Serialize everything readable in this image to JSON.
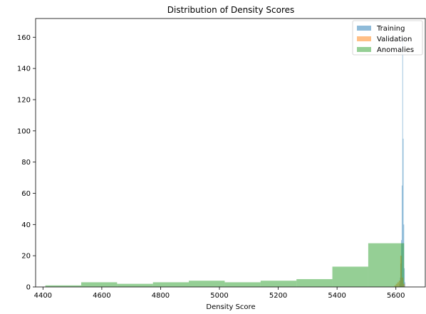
{
  "chart_data": {
    "type": "histogram",
    "title": "Distribution of Density Scores",
    "xlabel": "Density Score",
    "ylabel": "",
    "xlim": [
      4375,
      5700
    ],
    "ylim": [
      0,
      172
    ],
    "xticks": [
      4400,
      4600,
      4800,
      5000,
      5200,
      5400,
      5600
    ],
    "yticks": [
      0,
      20,
      40,
      60,
      80,
      100,
      120,
      140,
      160
    ],
    "legend_position": "top-right",
    "grid": false,
    "series": [
      {
        "name": "Training",
        "color": "#1f77b4",
        "bins": [
          {
            "x0": 5612,
            "x1": 5614,
            "count": 2
          },
          {
            "x0": 5614,
            "x1": 5616,
            "count": 6
          },
          {
            "x0": 5616,
            "x1": 5618,
            "count": 15
          },
          {
            "x0": 5618,
            "x1": 5620,
            "count": 30
          },
          {
            "x0": 5620,
            "x1": 5622,
            "count": 65
          },
          {
            "x0": 5622,
            "x1": 5624,
            "count": 160
          },
          {
            "x0": 5624,
            "x1": 5626,
            "count": 95
          },
          {
            "x0": 5626,
            "x1": 5628,
            "count": 40
          },
          {
            "x0": 5628,
            "x1": 5630,
            "count": 12
          },
          {
            "x0": 5630,
            "x1": 5632,
            "count": 3
          }
        ]
      },
      {
        "name": "Validation",
        "color": "#ff7f0e",
        "bins": [
          {
            "x0": 5595,
            "x1": 5600,
            "count": 1
          },
          {
            "x0": 5600,
            "x1": 5605,
            "count": 2
          },
          {
            "x0": 5605,
            "x1": 5610,
            "count": 3
          },
          {
            "x0": 5610,
            "x1": 5615,
            "count": 4
          },
          {
            "x0": 5615,
            "x1": 5620,
            "count": 20
          },
          {
            "x0": 5620,
            "x1": 5625,
            "count": 6
          },
          {
            "x0": 5625,
            "x1": 5630,
            "count": 2
          }
        ]
      },
      {
        "name": "Anomalies",
        "color": "#2ca02c",
        "bins": [
          {
            "x0": 4408,
            "x1": 4530,
            "count": 1
          },
          {
            "x0": 4530,
            "x1": 4652,
            "count": 3
          },
          {
            "x0": 4652,
            "x1": 4774,
            "count": 2
          },
          {
            "x0": 4774,
            "x1": 4896,
            "count": 3
          },
          {
            "x0": 4896,
            "x1": 5018,
            "count": 4
          },
          {
            "x0": 5018,
            "x1": 5140,
            "count": 3
          },
          {
            "x0": 5140,
            "x1": 5262,
            "count": 4
          },
          {
            "x0": 5262,
            "x1": 5384,
            "count": 5
          },
          {
            "x0": 5384,
            "x1": 5506,
            "count": 13
          },
          {
            "x0": 5506,
            "x1": 5628,
            "count": 28
          }
        ]
      }
    ]
  }
}
